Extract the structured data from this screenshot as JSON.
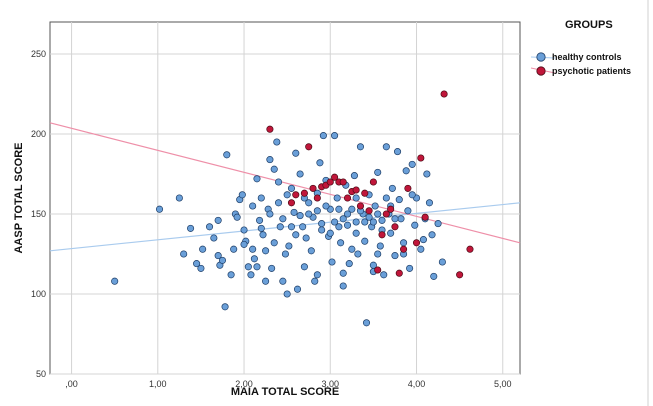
{
  "chart_data": {
    "type": "scatter",
    "xlabel": "MAIA TOTAL SCORE",
    "ylabel": "AASP TOTAL SCORE",
    "xlim": [
      -0.25,
      5.2
    ],
    "ylim": [
      50,
      270
    ],
    "x_ticks": [
      0,
      1,
      2,
      3,
      4,
      5
    ],
    "x_tick_labels": [
      ",00",
      "1,00",
      "2,00",
      "3,00",
      "4,00",
      "5,00"
    ],
    "y_ticks": [
      50,
      100,
      150,
      200,
      250
    ],
    "y_tick_labels": [
      "50",
      "100",
      "150",
      "200",
      "250"
    ],
    "grid": true,
    "legend_title": "GROUPS",
    "legend_position": "top-right",
    "series": [
      {
        "name": "healthy controls",
        "color": "#6a9fd8",
        "fit_line": {
          "x": [
            -0.25,
            5.2
          ],
          "y": [
            127,
            157
          ],
          "color": "#a9cbee"
        },
        "points": [
          [
            0.5,
            108
          ],
          [
            1.02,
            153
          ],
          [
            1.25,
            160
          ],
          [
            1.3,
            125
          ],
          [
            1.38,
            141
          ],
          [
            1.45,
            119
          ],
          [
            1.5,
            116
          ],
          [
            1.52,
            128
          ],
          [
            1.6,
            142
          ],
          [
            1.65,
            135
          ],
          [
            1.7,
            124
          ],
          [
            1.72,
            118
          ],
          [
            1.75,
            121
          ],
          [
            1.78,
            92
          ],
          [
            1.8,
            187
          ],
          [
            1.85,
            112
          ],
          [
            1.88,
            128
          ],
          [
            1.9,
            150
          ],
          [
            1.92,
            148
          ],
          [
            1.95,
            159
          ],
          [
            1.98,
            162
          ],
          [
            2.0,
            140
          ],
          [
            2.02,
            133
          ],
          [
            2.05,
            117
          ],
          [
            2.08,
            112
          ],
          [
            2.1,
            155
          ],
          [
            2.12,
            122
          ],
          [
            2.15,
            172
          ],
          [
            2.18,
            146
          ],
          [
            2.2,
            160
          ],
          [
            2.22,
            137
          ],
          [
            2.25,
            127
          ],
          [
            2.28,
            153
          ],
          [
            2.3,
            184
          ],
          [
            2.32,
            116
          ],
          [
            2.35,
            178
          ],
          [
            2.38,
            195
          ],
          [
            2.4,
            170
          ],
          [
            2.42,
            142
          ],
          [
            2.45,
            108
          ],
          [
            2.48,
            125
          ],
          [
            2.5,
            100
          ],
          [
            2.52,
            130
          ],
          [
            2.55,
            166
          ],
          [
            2.58,
            151
          ],
          [
            2.6,
            188
          ],
          [
            2.62,
            103
          ],
          [
            2.65,
            175
          ],
          [
            2.68,
            142
          ],
          [
            2.7,
            117
          ],
          [
            2.72,
            135
          ],
          [
            2.75,
            157
          ],
          [
            2.78,
            127
          ],
          [
            2.8,
            148
          ],
          [
            2.82,
            108
          ],
          [
            2.85,
            163
          ],
          [
            2.88,
            182
          ],
          [
            2.9,
            144
          ],
          [
            2.92,
            199
          ],
          [
            2.95,
            171
          ],
          [
            2.98,
            136
          ],
          [
            3.0,
            153
          ],
          [
            3.02,
            120
          ],
          [
            3.05,
            199
          ],
          [
            3.08,
            160
          ],
          [
            3.1,
            142
          ],
          [
            3.12,
            132
          ],
          [
            3.15,
            105
          ],
          [
            3.18,
            168
          ],
          [
            3.2,
            143
          ],
          [
            3.22,
            119
          ],
          [
            3.25,
            153
          ],
          [
            3.28,
            174
          ],
          [
            3.3,
            145
          ],
          [
            3.32,
            125
          ],
          [
            3.35,
            192
          ],
          [
            3.38,
            150
          ],
          [
            3.4,
            133
          ],
          [
            3.42,
            82
          ],
          [
            3.45,
            162
          ],
          [
            3.48,
            142
          ],
          [
            3.5,
            118
          ],
          [
            3.52,
            155
          ],
          [
            3.55,
            176
          ],
          [
            3.58,
            130
          ],
          [
            3.6,
            146
          ],
          [
            3.62,
            112
          ],
          [
            3.65,
            192
          ],
          [
            3.68,
            150
          ],
          [
            3.7,
            138
          ],
          [
            3.72,
            166
          ],
          [
            3.75,
            124
          ],
          [
            3.78,
            189
          ],
          [
            3.8,
            159
          ],
          [
            3.82,
            147
          ],
          [
            3.85,
            132
          ],
          [
            3.88,
            177
          ],
          [
            3.9,
            152
          ],
          [
            3.92,
            116
          ],
          [
            3.95,
            181
          ],
          [
            3.98,
            143
          ],
          [
            4.0,
            160
          ],
          [
            4.05,
            128
          ],
          [
            4.08,
            134
          ],
          [
            4.1,
            147
          ],
          [
            4.12,
            175
          ],
          [
            4.15,
            157
          ],
          [
            4.18,
            137
          ],
          [
            4.2,
            111
          ],
          [
            4.25,
            144
          ],
          [
            4.3,
            120
          ],
          [
            2.3,
            150
          ],
          [
            2.55,
            142
          ],
          [
            2.75,
            150
          ],
          [
            2.9,
            140
          ],
          [
            3.05,
            145
          ],
          [
            3.2,
            150
          ],
          [
            3.3,
            138
          ],
          [
            3.45,
            148
          ],
          [
            3.6,
            140
          ],
          [
            3.75,
            147
          ],
          [
            2.45,
            147
          ],
          [
            2.65,
            149
          ],
          [
            2.85,
            152
          ],
          [
            3.0,
            138
          ],
          [
            3.15,
            147
          ],
          [
            3.4,
            145
          ],
          [
            3.55,
            150
          ],
          [
            2.2,
            141
          ],
          [
            2.6,
            137
          ],
          [
            3.1,
            153
          ],
          [
            3.35,
            152
          ],
          [
            3.5,
            145
          ],
          [
            3.7,
            155
          ],
          [
            2.95,
            155
          ],
          [
            2.4,
            157
          ],
          [
            2.0,
            131
          ],
          [
            1.7,
            146
          ],
          [
            2.15,
            117
          ],
          [
            2.35,
            132
          ],
          [
            3.25,
            128
          ],
          [
            3.55,
            125
          ],
          [
            3.85,
            125
          ],
          [
            2.5,
            162
          ],
          [
            3.65,
            160
          ],
          [
            3.95,
            162
          ],
          [
            2.7,
            160
          ],
          [
            3.3,
            160
          ],
          [
            2.1,
            128
          ],
          [
            2.25,
            108
          ],
          [
            2.85,
            112
          ],
          [
            3.15,
            113
          ],
          [
            3.5,
            114
          ]
        ]
      },
      {
        "name": "psychotic patients",
        "color": "#c0163a",
        "fit_line": {
          "x": [
            -0.25,
            5.2
          ],
          "y": [
            207,
            132
          ],
          "color": "#ee8fa8"
        },
        "points": [
          [
            2.3,
            203
          ],
          [
            2.55,
            157
          ],
          [
            2.6,
            162
          ],
          [
            2.7,
            163
          ],
          [
            2.75,
            192
          ],
          [
            2.8,
            166
          ],
          [
            2.9,
            167
          ],
          [
            2.95,
            168
          ],
          [
            3.0,
            170
          ],
          [
            3.05,
            173
          ],
          [
            3.1,
            170
          ],
          [
            3.2,
            160
          ],
          [
            3.25,
            164
          ],
          [
            3.3,
            165
          ],
          [
            3.35,
            155
          ],
          [
            3.4,
            163
          ],
          [
            3.45,
            152
          ],
          [
            3.5,
            170
          ],
          [
            3.55,
            115
          ],
          [
            3.6,
            137
          ],
          [
            3.65,
            150
          ],
          [
            3.75,
            142
          ],
          [
            3.8,
            113
          ],
          [
            3.85,
            128
          ],
          [
            3.9,
            166
          ],
          [
            4.0,
            132
          ],
          [
            4.05,
            185
          ],
          [
            4.1,
            148
          ],
          [
            4.32,
            225
          ],
          [
            4.5,
            112
          ],
          [
            4.62,
            128
          ],
          [
            3.15,
            170
          ],
          [
            2.85,
            160
          ],
          [
            3.7,
            153
          ]
        ]
      }
    ]
  }
}
